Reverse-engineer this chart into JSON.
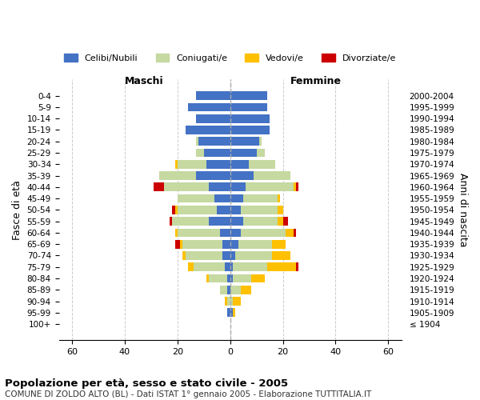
{
  "age_groups": [
    "100+",
    "95-99",
    "90-94",
    "85-89",
    "80-84",
    "75-79",
    "70-74",
    "65-69",
    "60-64",
    "55-59",
    "50-54",
    "45-49",
    "40-44",
    "35-39",
    "30-34",
    "25-29",
    "20-24",
    "15-19",
    "10-14",
    "5-9",
    "0-4"
  ],
  "birth_years": [
    "≤ 1904",
    "1905-1909",
    "1910-1914",
    "1915-1919",
    "1920-1924",
    "1925-1929",
    "1930-1934",
    "1935-1939",
    "1940-1944",
    "1945-1949",
    "1950-1954",
    "1955-1959",
    "1960-1964",
    "1965-1969",
    "1970-1974",
    "1975-1979",
    "1980-1984",
    "1985-1989",
    "1990-1994",
    "1995-1999",
    "2000-2004"
  ],
  "maschi": {
    "celibi": [
      0,
      1,
      0,
      1,
      1,
      2,
      3,
      3,
      4,
      8,
      5,
      6,
      8,
      13,
      9,
      10,
      12,
      17,
      13,
      16,
      13
    ],
    "coniugati": [
      0,
      0,
      1,
      3,
      7,
      12,
      14,
      15,
      16,
      14,
      15,
      14,
      17,
      14,
      11,
      3,
      1,
      0,
      0,
      0,
      0
    ],
    "vedovi": [
      0,
      0,
      1,
      0,
      1,
      2,
      1,
      1,
      1,
      0,
      1,
      0,
      0,
      0,
      1,
      0,
      0,
      0,
      0,
      0,
      0
    ],
    "divorziati": [
      0,
      0,
      0,
      0,
      0,
      0,
      0,
      2,
      0,
      1,
      1,
      0,
      4,
      0,
      0,
      0,
      0,
      0,
      0,
      0,
      0
    ]
  },
  "femmine": {
    "nubili": [
      0,
      1,
      0,
      0,
      1,
      1,
      2,
      3,
      4,
      5,
      4,
      5,
      6,
      9,
      7,
      10,
      11,
      15,
      15,
      14,
      14
    ],
    "coniugate": [
      0,
      0,
      1,
      4,
      7,
      13,
      14,
      13,
      17,
      13,
      14,
      13,
      18,
      14,
      10,
      3,
      1,
      0,
      0,
      0,
      0
    ],
    "vedove": [
      0,
      1,
      3,
      4,
      5,
      11,
      7,
      5,
      3,
      2,
      2,
      1,
      1,
      0,
      0,
      0,
      0,
      0,
      0,
      0,
      0
    ],
    "divorziate": [
      0,
      0,
      0,
      0,
      0,
      1,
      0,
      0,
      1,
      2,
      0,
      0,
      1,
      0,
      0,
      0,
      0,
      0,
      0,
      0,
      0
    ]
  },
  "color_celibi": "#4472c4",
  "color_coniugati": "#c5d9a0",
  "color_vedovi": "#ffc000",
  "color_divorziati": "#cc0000",
  "xlim": 65,
  "title": "Popolazione per età, sesso e stato civile - 2005",
  "subtitle": "COMUNE DI ZOLDO ALTO (BL) - Dati ISTAT 1° gennaio 2005 - Elaborazione TUTTITALIA.IT",
  "ylabel_left": "Fasce di età",
  "ylabel_right": "Anni di nascita",
  "xlabel_left": "Maschi",
  "xlabel_right": "Femmine"
}
